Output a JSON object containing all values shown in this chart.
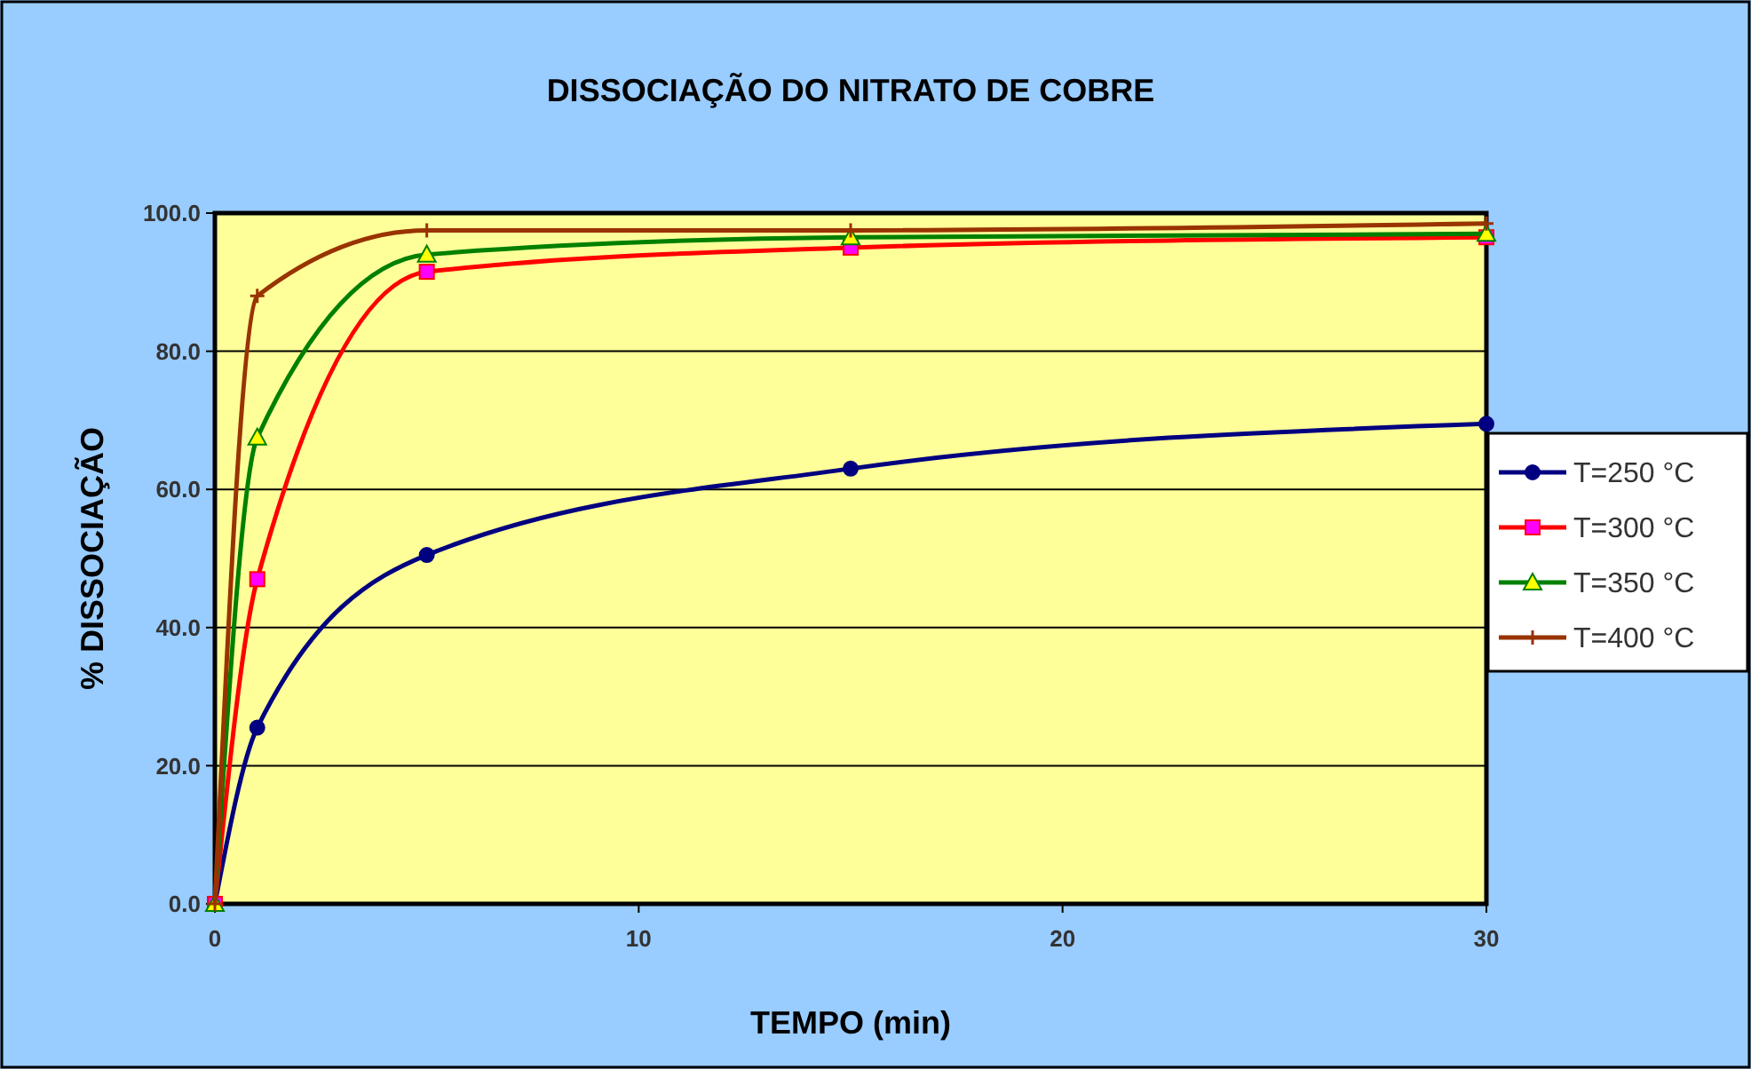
{
  "chart_data": {
    "type": "line",
    "title": "DISSOCIAÇÃO DO NITRATO DE COBRE",
    "xlabel": "TEMPO (min)",
    "ylabel": "% DISSOCIAÇÃO",
    "x": [
      0,
      1,
      5,
      15,
      30
    ],
    "series": [
      {
        "name": "T=250 °C",
        "color": "#000080",
        "marker": "circle",
        "values": [
          0,
          25.5,
          50.5,
          63,
          69.5
        ]
      },
      {
        "name": "T=300 °C",
        "color": "#ff0000",
        "marker": "square",
        "values": [
          0,
          47,
          91.5,
          95,
          96.5
        ]
      },
      {
        "name": "T=350 °C",
        "color": "#008000",
        "marker": "triangle",
        "values": [
          0,
          67.5,
          94,
          96.5,
          97
        ]
      },
      {
        "name": "T=400 °C",
        "color": "#993300",
        "marker": "cross",
        "values": [
          0,
          88,
          97.5,
          97.5,
          98.5
        ]
      }
    ],
    "xlim": [
      0,
      30
    ],
    "xticks": [
      0,
      10,
      20,
      30
    ],
    "ylim": [
      0,
      100
    ],
    "yticks": [
      {
        "value": 0,
        "label": "0.0"
      },
      {
        "value": 20,
        "label": "20.0"
      },
      {
        "value": 40,
        "label": "40.0"
      },
      {
        "value": 60,
        "label": "60.0"
      },
      {
        "value": 80,
        "label": "80.0"
      },
      {
        "value": 100,
        "label": "100.0"
      }
    ],
    "grid": "y",
    "legend": "right",
    "line_style": "solid"
  }
}
